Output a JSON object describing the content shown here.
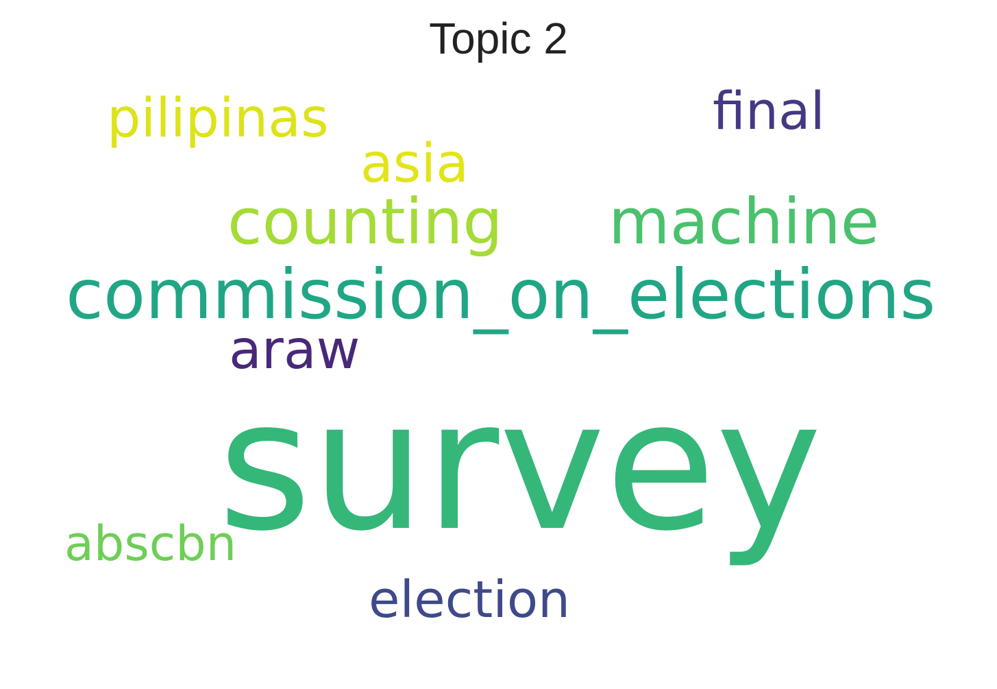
{
  "title": "Topic 2",
  "words": [
    {
      "text": "survey",
      "color": "#35b779"
    },
    {
      "text": "commission_on_elections",
      "color": "#21a685"
    },
    {
      "text": "machine",
      "color": "#4ac16d"
    },
    {
      "text": "counting",
      "color": "#a5db36"
    },
    {
      "text": "pilipinas",
      "color": "#dde318"
    },
    {
      "text": "asia",
      "color": "#e2e418"
    },
    {
      "text": "final",
      "color": "#443983"
    },
    {
      "text": "araw",
      "color": "#482878"
    },
    {
      "text": "abscbn",
      "color": "#6ece58"
    },
    {
      "text": "election",
      "color": "#3e4a89"
    }
  ]
}
